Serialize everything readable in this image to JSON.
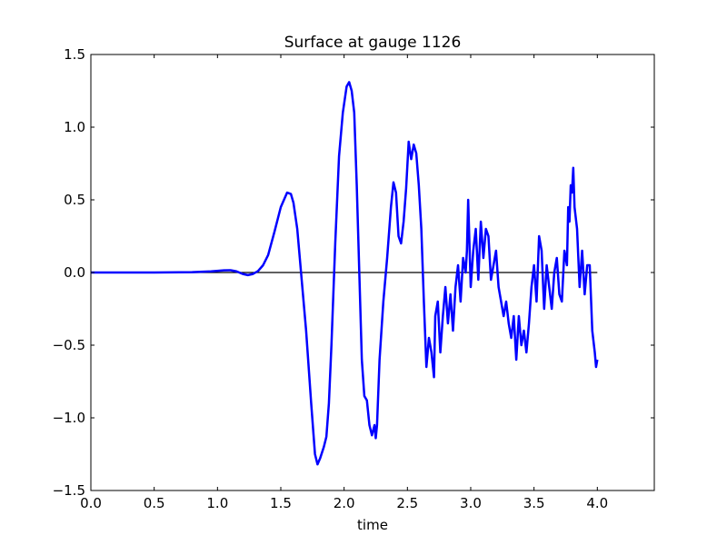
{
  "chart_data": {
    "type": "line",
    "title": "Surface at gauge 1126",
    "xlabel": "time",
    "ylabel": "",
    "xlim": [
      0.0,
      4.45
    ],
    "ylim": [
      -1.5,
      1.5
    ],
    "x_ticks": [
      0.0,
      0.5,
      1.0,
      1.5,
      2.0,
      2.5,
      3.0,
      3.5,
      4.0
    ],
    "x_tick_labels": [
      "0.0",
      "0.5",
      "1.0",
      "1.5",
      "2.0",
      "2.5",
      "3.0",
      "3.5",
      "4.0"
    ],
    "y_ticks": [
      -1.5,
      -1.0,
      -0.5,
      0.0,
      0.5,
      1.0,
      1.5
    ],
    "y_tick_labels": [
      "−1.5",
      "−1.0",
      "−0.5",
      "0.0",
      "0.5",
      "1.0",
      "1.5"
    ],
    "grid": false,
    "colors": {
      "series": "#0000ff",
      "reference": "#000000"
    },
    "reference_line": {
      "y": 0.0,
      "x_range": [
        0.0,
        4.0
      ]
    },
    "series": [
      {
        "values_xy": [
          [
            0.0,
            0.0
          ],
          [
            0.5,
            0.0
          ],
          [
            0.8,
            0.002
          ],
          [
            0.95,
            0.008
          ],
          [
            1.05,
            0.015
          ],
          [
            1.1,
            0.016
          ],
          [
            1.15,
            0.008
          ],
          [
            1.2,
            -0.01
          ],
          [
            1.24,
            -0.018
          ],
          [
            1.28,
            -0.01
          ],
          [
            1.32,
            0.01
          ],
          [
            1.36,
            0.05
          ],
          [
            1.4,
            0.12
          ],
          [
            1.45,
            0.28
          ],
          [
            1.5,
            0.45
          ],
          [
            1.55,
            0.55
          ],
          [
            1.58,
            0.54
          ],
          [
            1.6,
            0.48
          ],
          [
            1.63,
            0.3
          ],
          [
            1.66,
            0.0
          ],
          [
            1.7,
            -0.4
          ],
          [
            1.74,
            -0.9
          ],
          [
            1.77,
            -1.25
          ],
          [
            1.79,
            -1.32
          ],
          [
            1.81,
            -1.28
          ],
          [
            1.84,
            -1.2
          ],
          [
            1.86,
            -1.13
          ],
          [
            1.88,
            -0.9
          ],
          [
            1.9,
            -0.5
          ],
          [
            1.93,
            0.2
          ],
          [
            1.96,
            0.8
          ],
          [
            1.99,
            1.1
          ],
          [
            2.02,
            1.28
          ],
          [
            2.04,
            1.31
          ],
          [
            2.06,
            1.25
          ],
          [
            2.08,
            1.1
          ],
          [
            2.1,
            0.6
          ],
          [
            2.12,
            0.0
          ],
          [
            2.14,
            -0.6
          ],
          [
            2.16,
            -0.85
          ],
          [
            2.18,
            -0.88
          ],
          [
            2.2,
            -1.05
          ],
          [
            2.22,
            -1.12
          ],
          [
            2.24,
            -1.05
          ],
          [
            2.25,
            -1.14
          ],
          [
            2.26,
            -1.05
          ],
          [
            2.28,
            -0.6
          ],
          [
            2.31,
            -0.2
          ],
          [
            2.34,
            0.1
          ],
          [
            2.37,
            0.45
          ],
          [
            2.39,
            0.62
          ],
          [
            2.41,
            0.55
          ],
          [
            2.43,
            0.25
          ],
          [
            2.45,
            0.2
          ],
          [
            2.47,
            0.35
          ],
          [
            2.49,
            0.58
          ],
          [
            2.51,
            0.9
          ],
          [
            2.53,
            0.78
          ],
          [
            2.55,
            0.88
          ],
          [
            2.57,
            0.82
          ],
          [
            2.59,
            0.6
          ],
          [
            2.61,
            0.3
          ],
          [
            2.63,
            -0.2
          ],
          [
            2.65,
            -0.65
          ],
          [
            2.67,
            -0.45
          ],
          [
            2.69,
            -0.55
          ],
          [
            2.71,
            -0.72
          ],
          [
            2.72,
            -0.3
          ],
          [
            2.74,
            -0.2
          ],
          [
            2.76,
            -0.55
          ],
          [
            2.78,
            -0.3
          ],
          [
            2.8,
            -0.1
          ],
          [
            2.82,
            -0.35
          ],
          [
            2.84,
            -0.15
          ],
          [
            2.86,
            -0.4
          ],
          [
            2.88,
            -0.1
          ],
          [
            2.9,
            0.05
          ],
          [
            2.92,
            -0.2
          ],
          [
            2.94,
            0.1
          ],
          [
            2.96,
            0.0
          ],
          [
            2.97,
            0.15
          ],
          [
            2.98,
            0.5
          ],
          [
            2.99,
            0.2
          ],
          [
            3.0,
            -0.1
          ],
          [
            3.02,
            0.15
          ],
          [
            3.04,
            0.3
          ],
          [
            3.06,
            -0.05
          ],
          [
            3.08,
            0.35
          ],
          [
            3.1,
            0.1
          ],
          [
            3.12,
            0.3
          ],
          [
            3.14,
            0.25
          ],
          [
            3.16,
            -0.05
          ],
          [
            3.18,
            0.05
          ],
          [
            3.2,
            0.15
          ],
          [
            3.22,
            -0.1
          ],
          [
            3.24,
            -0.2
          ],
          [
            3.26,
            -0.3
          ],
          [
            3.28,
            -0.2
          ],
          [
            3.3,
            -0.35
          ],
          [
            3.32,
            -0.45
          ],
          [
            3.34,
            -0.3
          ],
          [
            3.36,
            -0.6
          ],
          [
            3.38,
            -0.3
          ],
          [
            3.4,
            -0.5
          ],
          [
            3.42,
            -0.4
          ],
          [
            3.44,
            -0.55
          ],
          [
            3.46,
            -0.35
          ],
          [
            3.48,
            -0.1
          ],
          [
            3.5,
            0.05
          ],
          [
            3.52,
            -0.2
          ],
          [
            3.54,
            0.25
          ],
          [
            3.56,
            0.15
          ],
          [
            3.58,
            -0.25
          ],
          [
            3.6,
            0.05
          ],
          [
            3.62,
            -0.1
          ],
          [
            3.64,
            -0.25
          ],
          [
            3.66,
            0.0
          ],
          [
            3.68,
            0.1
          ],
          [
            3.7,
            -0.15
          ],
          [
            3.72,
            -0.2
          ],
          [
            3.74,
            0.15
          ],
          [
            3.76,
            0.05
          ],
          [
            3.77,
            0.45
          ],
          [
            3.78,
            0.35
          ],
          [
            3.79,
            0.6
          ],
          [
            3.8,
            0.55
          ],
          [
            3.81,
            0.72
          ],
          [
            3.82,
            0.45
          ],
          [
            3.84,
            0.3
          ],
          [
            3.86,
            -0.1
          ],
          [
            3.88,
            0.15
          ],
          [
            3.9,
            -0.15
          ],
          [
            3.92,
            0.05
          ],
          [
            3.94,
            0.05
          ],
          [
            3.96,
            -0.4
          ],
          [
            3.98,
            -0.55
          ],
          [
            3.99,
            -0.65
          ],
          [
            4.0,
            -0.6
          ]
        ]
      }
    ]
  }
}
